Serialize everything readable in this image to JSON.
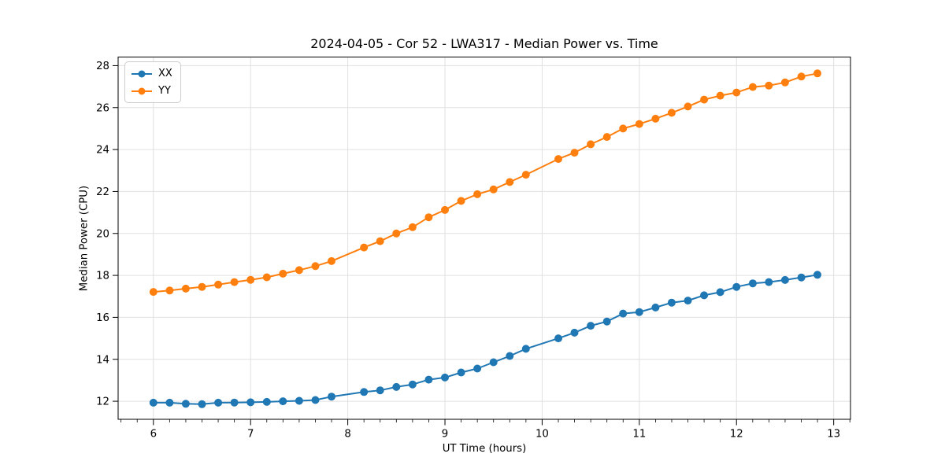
{
  "chart_data": {
    "type": "line",
    "title": "2024-04-05 - Cor 52 - LWA317 - Median Power vs. Time",
    "xlabel": "UT Time (hours)",
    "ylabel": "Median Power (CPU)",
    "xlim": [
      5.637,
      13.173
    ],
    "ylim": [
      11.14,
      28.41
    ],
    "xticks": [
      6,
      7,
      8,
      9,
      10,
      11,
      12,
      13
    ],
    "yticks": [
      12,
      14,
      16,
      18,
      20,
      22,
      24,
      26,
      28
    ],
    "x_minor_tick_step": 0.16667,
    "grid": true,
    "grid_color": "#e0e0e0",
    "spine_color": "#000000",
    "legend_position": "upper left",
    "x": [
      6.0,
      6.167,
      6.333,
      6.5,
      6.667,
      6.833,
      7.0,
      7.167,
      7.333,
      7.5,
      7.667,
      7.833,
      8.167,
      8.333,
      8.5,
      8.667,
      8.833,
      9.0,
      9.167,
      9.333,
      9.5,
      9.667,
      9.833,
      10.167,
      10.333,
      10.5,
      10.667,
      10.833,
      11.0,
      11.167,
      11.333,
      11.5,
      11.667,
      11.833,
      12.0,
      12.167,
      12.333,
      12.5,
      12.667,
      12.833
    ],
    "series": [
      {
        "name": "XX",
        "color": "#1f77b4",
        "values": [
          11.93,
          11.93,
          11.88,
          11.86,
          11.93,
          11.94,
          11.95,
          11.97,
          12.0,
          12.02,
          12.06,
          12.22,
          12.44,
          12.52,
          12.68,
          12.8,
          13.03,
          13.13,
          13.37,
          13.56,
          13.86,
          14.16,
          14.5,
          15.0,
          15.27,
          15.6,
          15.8,
          16.18,
          16.25,
          16.47,
          16.7,
          16.8,
          17.05,
          17.2,
          17.45,
          17.62,
          17.68,
          17.78,
          17.9,
          18.03
        ]
      },
      {
        "name": "YY",
        "color": "#ff7f0e",
        "values": [
          17.21,
          17.28,
          17.37,
          17.45,
          17.56,
          17.68,
          17.79,
          17.91,
          18.08,
          18.25,
          18.44,
          18.68,
          19.33,
          19.63,
          20.0,
          20.3,
          20.77,
          21.12,
          21.55,
          21.87,
          22.1,
          22.45,
          22.8,
          23.55,
          23.85,
          24.25,
          24.6,
          25.0,
          25.22,
          25.47,
          25.75,
          26.05,
          26.38,
          26.57,
          26.72,
          26.98,
          27.05,
          27.2,
          27.48,
          27.63
        ]
      }
    ]
  }
}
